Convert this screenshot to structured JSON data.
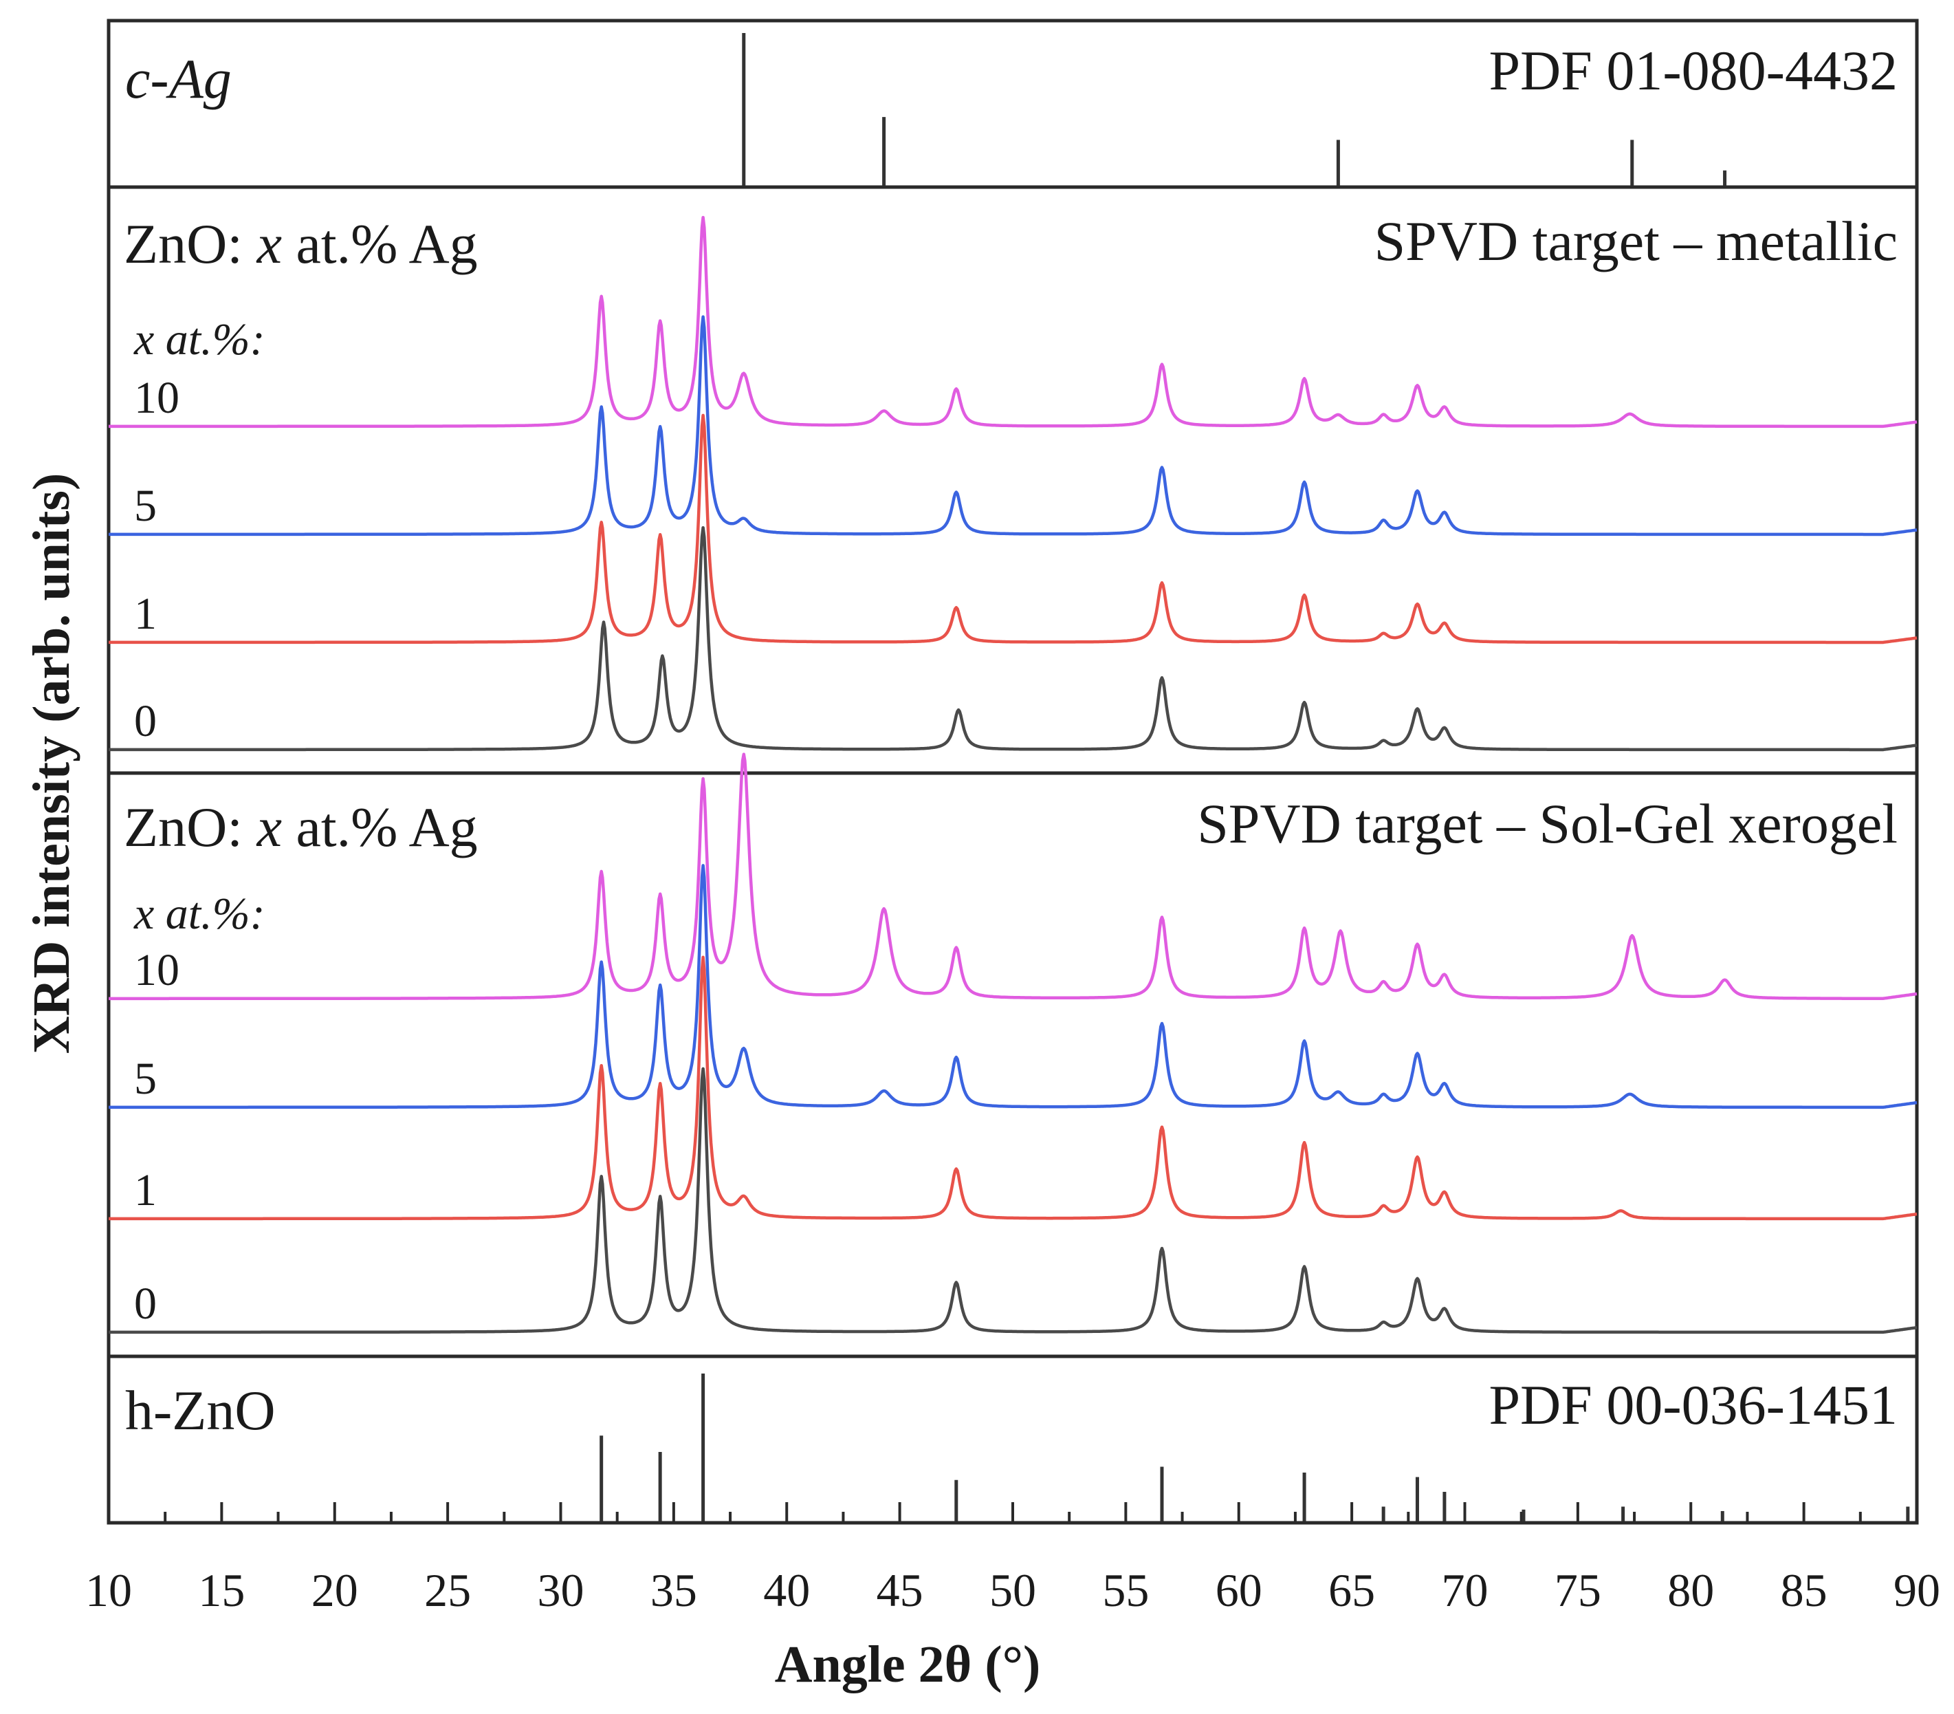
{
  "chart_data": {
    "type": "line",
    "subtype": "stacked XRD patterns",
    "xlabel": "Angle 2θ (°)",
    "ylabel": "XRD intensity (arb. units)",
    "xlim": [
      10,
      90
    ],
    "x_ticks": [
      10,
      15,
      20,
      25,
      30,
      35,
      40,
      45,
      50,
      55,
      60,
      65,
      70,
      75,
      80,
      85,
      90
    ],
    "grid": false,
    "colors": {
      "0": "#4a4a4a",
      "1": "#e8524a",
      "5": "#3b64e0",
      "10": "#e05ce0"
    },
    "reference_cAg": {
      "label": "c-Ag",
      "pdf": "PDF 01-080-4432",
      "lines": [
        {
          "x": 38.1,
          "rel": 1.0
        },
        {
          "x": 44.3,
          "rel": 0.45
        },
        {
          "x": 64.4,
          "rel": 0.3
        },
        {
          "x": 77.4,
          "rel": 0.3
        },
        {
          "x": 81.5,
          "rel": 0.1
        }
      ]
    },
    "panel_metallic": {
      "title_prefix": "ZnO: ",
      "title_var": "x",
      "title_suffix": " at.% Ag",
      "target": "SPVD target – metallic",
      "x_header": "x at.%:",
      "series": [
        {
          "name": "10",
          "color": "#e05ce0",
          "peaks": [
            {
              "x": 31.8,
              "h": 0.52,
              "w": 0.22
            },
            {
              "x": 34.4,
              "h": 0.41,
              "w": 0.22
            },
            {
              "x": 36.3,
              "h": 0.83,
              "w": 0.22
            },
            {
              "x": 38.1,
              "h": 0.2,
              "w": 0.35
            },
            {
              "x": 44.3,
              "h": 0.06,
              "w": 0.4
            },
            {
              "x": 47.5,
              "h": 0.15,
              "w": 0.25
            },
            {
              "x": 56.6,
              "h": 0.25,
              "w": 0.25
            },
            {
              "x": 62.9,
              "h": 0.19,
              "w": 0.25
            },
            {
              "x": 64.4,
              "h": 0.04,
              "w": 0.35
            },
            {
              "x": 66.4,
              "h": 0.04,
              "w": 0.25
            },
            {
              "x": 67.9,
              "h": 0.16,
              "w": 0.28
            },
            {
              "x": 69.1,
              "h": 0.07,
              "w": 0.28
            },
            {
              "x": 77.3,
              "h": 0.05,
              "w": 0.45
            }
          ]
        },
        {
          "name": "5",
          "color": "#3b64e0",
          "peaks": [
            {
              "x": 31.8,
              "h": 0.51,
              "w": 0.22
            },
            {
              "x": 34.4,
              "h": 0.42,
              "w": 0.22
            },
            {
              "x": 36.3,
              "h": 0.87,
              "w": 0.22
            },
            {
              "x": 38.1,
              "h": 0.05,
              "w": 0.35
            },
            {
              "x": 47.5,
              "h": 0.17,
              "w": 0.25
            },
            {
              "x": 56.6,
              "h": 0.27,
              "w": 0.25
            },
            {
              "x": 62.9,
              "h": 0.21,
              "w": 0.25
            },
            {
              "x": 66.4,
              "h": 0.05,
              "w": 0.25
            },
            {
              "x": 67.9,
              "h": 0.17,
              "w": 0.28
            },
            {
              "x": 69.1,
              "h": 0.08,
              "w": 0.28
            }
          ]
        },
        {
          "name": "1",
          "color": "#e8524a",
          "peaks": [
            {
              "x": 31.8,
              "h": 0.48,
              "w": 0.22
            },
            {
              "x": 34.4,
              "h": 0.42,
              "w": 0.22
            },
            {
              "x": 36.3,
              "h": 0.91,
              "w": 0.22
            },
            {
              "x": 47.5,
              "h": 0.14,
              "w": 0.25
            },
            {
              "x": 56.6,
              "h": 0.24,
              "w": 0.25
            },
            {
              "x": 62.9,
              "h": 0.19,
              "w": 0.25
            },
            {
              "x": 66.4,
              "h": 0.03,
              "w": 0.25
            },
            {
              "x": 67.9,
              "h": 0.15,
              "w": 0.28
            },
            {
              "x": 69.1,
              "h": 0.07,
              "w": 0.28
            }
          ]
        },
        {
          "name": "0",
          "color": "#4a4a4a",
          "peaks": [
            {
              "x": 31.9,
              "h": 0.51,
              "w": 0.22
            },
            {
              "x": 34.5,
              "h": 0.36,
              "w": 0.22
            },
            {
              "x": 36.3,
              "h": 0.89,
              "w": 0.24
            },
            {
              "x": 47.6,
              "h": 0.16,
              "w": 0.25
            },
            {
              "x": 56.6,
              "h": 0.29,
              "w": 0.25
            },
            {
              "x": 62.9,
              "h": 0.19,
              "w": 0.25
            },
            {
              "x": 66.4,
              "h": 0.03,
              "w": 0.25
            },
            {
              "x": 67.9,
              "h": 0.16,
              "w": 0.28
            },
            {
              "x": 69.1,
              "h": 0.08,
              "w": 0.28
            }
          ]
        }
      ]
    },
    "panel_solgel": {
      "title_prefix": "ZnO: ",
      "title_var": "x",
      "title_suffix": " at.% Ag",
      "target": "SPVD target – Sol-Gel xerogel",
      "x_header": "x at.%:",
      "series": [
        {
          "name": "10",
          "color": "#e05ce0",
          "peaks": [
            {
              "x": 31.8,
              "h": 0.48,
              "w": 0.22
            },
            {
              "x": 34.4,
              "h": 0.38,
              "w": 0.22
            },
            {
              "x": 36.3,
              "h": 0.81,
              "w": 0.22
            },
            {
              "x": 38.1,
              "h": 0.92,
              "w": 0.3
            },
            {
              "x": 44.3,
              "h": 0.34,
              "w": 0.35
            },
            {
              "x": 47.5,
              "h": 0.19,
              "w": 0.25
            },
            {
              "x": 56.6,
              "h": 0.31,
              "w": 0.25
            },
            {
              "x": 62.9,
              "h": 0.26,
              "w": 0.25
            },
            {
              "x": 64.5,
              "h": 0.25,
              "w": 0.3
            },
            {
              "x": 66.4,
              "h": 0.05,
              "w": 0.25
            },
            {
              "x": 67.9,
              "h": 0.2,
              "w": 0.28
            },
            {
              "x": 69.1,
              "h": 0.08,
              "w": 0.28
            },
            {
              "x": 77.4,
              "h": 0.24,
              "w": 0.35
            },
            {
              "x": 81.5,
              "h": 0.07,
              "w": 0.35
            }
          ]
        },
        {
          "name": "5",
          "color": "#3b64e0",
          "peaks": [
            {
              "x": 31.8,
              "h": 0.55,
              "w": 0.22
            },
            {
              "x": 34.4,
              "h": 0.45,
              "w": 0.22
            },
            {
              "x": 36.3,
              "h": 0.91,
              "w": 0.22
            },
            {
              "x": 38.1,
              "h": 0.21,
              "w": 0.35
            },
            {
              "x": 44.3,
              "h": 0.06,
              "w": 0.4
            },
            {
              "x": 47.5,
              "h": 0.19,
              "w": 0.25
            },
            {
              "x": 56.6,
              "h": 0.32,
              "w": 0.25
            },
            {
              "x": 62.9,
              "h": 0.25,
              "w": 0.25
            },
            {
              "x": 64.4,
              "h": 0.05,
              "w": 0.35
            },
            {
              "x": 66.4,
              "h": 0.04,
              "w": 0.25
            },
            {
              "x": 67.9,
              "h": 0.2,
              "w": 0.28
            },
            {
              "x": 69.1,
              "h": 0.08,
              "w": 0.28
            },
            {
              "x": 77.3,
              "h": 0.05,
              "w": 0.45
            }
          ]
        },
        {
          "name": "1",
          "color": "#e8524a",
          "peaks": [
            {
              "x": 31.8,
              "h": 0.58,
              "w": 0.22
            },
            {
              "x": 34.4,
              "h": 0.5,
              "w": 0.22
            },
            {
              "x": 36.3,
              "h": 0.99,
              "w": 0.22
            },
            {
              "x": 38.1,
              "h": 0.07,
              "w": 0.35
            },
            {
              "x": 47.5,
              "h": 0.19,
              "w": 0.25
            },
            {
              "x": 56.6,
              "h": 0.35,
              "w": 0.25
            },
            {
              "x": 62.9,
              "h": 0.29,
              "w": 0.25
            },
            {
              "x": 66.4,
              "h": 0.04,
              "w": 0.25
            },
            {
              "x": 67.9,
              "h": 0.23,
              "w": 0.28
            },
            {
              "x": 69.1,
              "h": 0.09,
              "w": 0.28
            },
            {
              "x": 76.9,
              "h": 0.03,
              "w": 0.35
            }
          ]
        },
        {
          "name": "0",
          "color": "#4a4a4a",
          "peaks": [
            {
              "x": 31.8,
              "h": 0.59,
              "w": 0.22
            },
            {
              "x": 34.4,
              "h": 0.5,
              "w": 0.22
            },
            {
              "x": 36.3,
              "h": 1.0,
              "w": 0.24
            },
            {
              "x": 47.5,
              "h": 0.19,
              "w": 0.25
            },
            {
              "x": 56.6,
              "h": 0.32,
              "w": 0.25
            },
            {
              "x": 62.9,
              "h": 0.25,
              "w": 0.25
            },
            {
              "x": 66.4,
              "h": 0.03,
              "w": 0.25
            },
            {
              "x": 67.9,
              "h": 0.2,
              "w": 0.28
            },
            {
              "x": 69.1,
              "h": 0.08,
              "w": 0.28
            }
          ]
        }
      ]
    },
    "reference_hZnO": {
      "label": "h-ZnO",
      "pdf": "PDF 00-036-1451",
      "lines": [
        {
          "x": 31.8,
          "rel": 0.58
        },
        {
          "x": 34.4,
          "rel": 0.47
        },
        {
          "x": 36.3,
          "rel": 1.0
        },
        {
          "x": 47.5,
          "rel": 0.28
        },
        {
          "x": 56.6,
          "rel": 0.37
        },
        {
          "x": 62.9,
          "rel": 0.33
        },
        {
          "x": 66.4,
          "rel": 0.1
        },
        {
          "x": 67.9,
          "rel": 0.3
        },
        {
          "x": 69.1,
          "rel": 0.2
        },
        {
          "x": 72.6,
          "rel": 0.08
        },
        {
          "x": 77.0,
          "rel": 0.1
        },
        {
          "x": 81.4,
          "rel": 0.07
        },
        {
          "x": 89.6,
          "rel": 0.1
        }
      ]
    }
  }
}
